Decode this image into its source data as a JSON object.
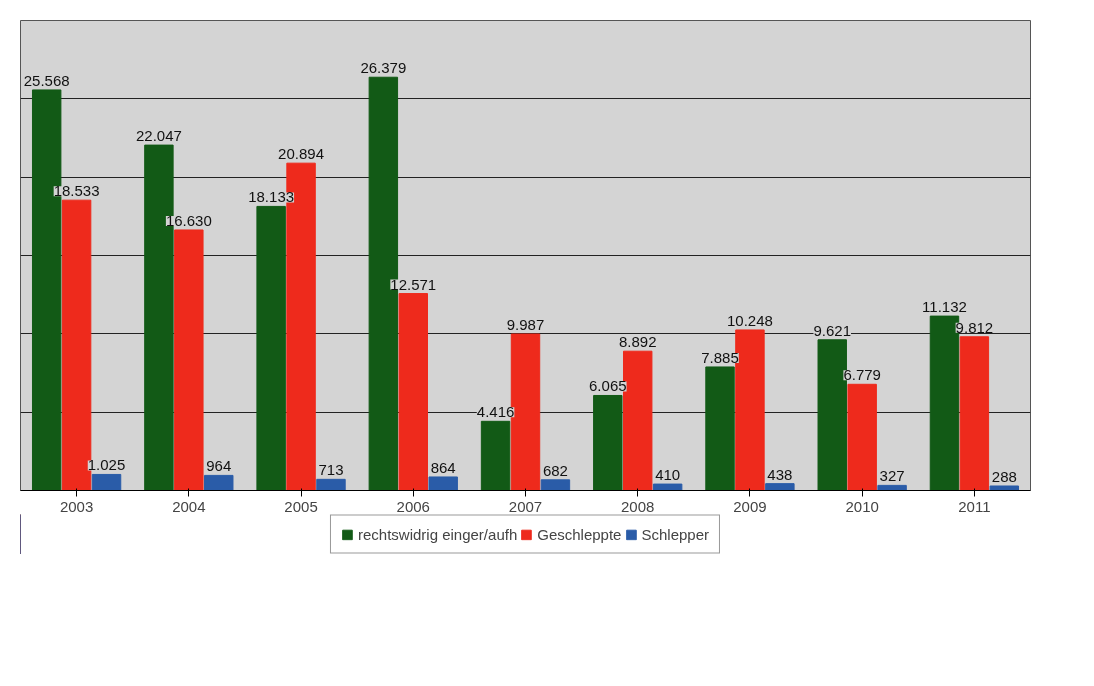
{
  "chart_data": {
    "type": "bar",
    "categories": [
      "2003",
      "2004",
      "2005",
      "2006",
      "2007",
      "2008",
      "2009",
      "2010",
      "2011"
    ],
    "series": [
      {
        "name": "rechtswidrig einger/aufh",
        "color": "#125a16",
        "values": [
          25568,
          22047,
          18133,
          26379,
          4416,
          6065,
          7885,
          9621,
          11132
        ],
        "value_labels": [
          "25.568",
          "22.047",
          "18.133",
          "26.379",
          "4.416",
          "6.065",
          "7.885",
          "9.621",
          "11.132"
        ]
      },
      {
        "name": "Geschleppte",
        "color": "#ee2a1c",
        "values": [
          18533,
          16630,
          20894,
          12571,
          9987,
          8892,
          10248,
          6779,
          9812
        ],
        "value_labels": [
          "18.533",
          "16.630",
          "20.894",
          "12.571",
          "9.987",
          "8.892",
          "10.248",
          "6.779",
          "9.812"
        ]
      },
      {
        "name": "Schlepper",
        "color": "#2a5ca8",
        "values": [
          1025,
          964,
          713,
          864,
          682,
          410,
          438,
          327,
          288
        ],
        "value_labels": [
          "1.025",
          "964",
          "713",
          "864",
          "682",
          "410",
          "438",
          "327",
          "288"
        ]
      }
    ],
    "ylim": [
      0,
      30000
    ],
    "yticks": [
      {
        "value": 0,
        "label": null
      },
      {
        "value": 5000,
        "label": null
      },
      {
        "value": 10000,
        "label": null
      },
      {
        "value": 15000,
        "label": null
      },
      {
        "value": 20000,
        "label": null
      },
      {
        "value": 25000,
        "label": null
      },
      {
        "value": 30000,
        "label": null
      }
    ],
    "tick_labels": "x",
    "grid": "y",
    "legend": "bottom"
  }
}
